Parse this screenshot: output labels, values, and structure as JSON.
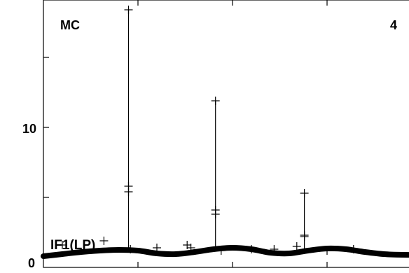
{
  "chart_data": {
    "type": "line",
    "title": "",
    "xlabel": "",
    "ylabel": "",
    "corner_left_label": "MC",
    "corner_right_label": "4",
    "curve_label": "IF1(LP)",
    "ylim": [
      0,
      19.1
    ],
    "xlim": [
      0,
      100
    ],
    "y_ticks": [
      0,
      10
    ],
    "y_tick_labels": [
      "0",
      "10"
    ],
    "series": [
      {
        "name": "IF1(LP)",
        "style": "smooth-thick",
        "x": [
          0,
          5,
          10,
          15,
          20,
          25,
          30,
          35,
          40,
          45,
          50,
          55,
          60,
          65,
          70,
          75,
          80,
          85,
          90,
          95,
          100
        ],
        "values": [
          0.8,
          0.95,
          1.1,
          1.2,
          1.25,
          1.2,
          1.0,
          0.95,
          1.1,
          1.3,
          1.4,
          1.3,
          1.05,
          1.0,
          1.2,
          1.35,
          1.3,
          1.1,
          0.95,
          0.9,
          0.9
        ]
      },
      {
        "name": "",
        "style": "spikes",
        "spikes": [
          {
            "x": 22.5,
            "top": 18.4,
            "marks": [
              5.8,
              5.4
            ]
          },
          {
            "x": 45.5,
            "top": 11.9,
            "marks": [
              4.1,
              3.8
            ]
          },
          {
            "x": 69.0,
            "top": 5.3,
            "marks": [
              2.3,
              2.2
            ]
          }
        ]
      },
      {
        "name": "",
        "style": "plus-markers",
        "x": [
          5,
          16,
          23,
          30,
          38,
          39,
          47,
          55,
          61,
          67,
          75,
          82
        ],
        "values": [
          1.6,
          1.9,
          1.3,
          1.4,
          1.6,
          1.4,
          1.2,
          1.3,
          1.3,
          1.5,
          1.2,
          1.3
        ]
      }
    ]
  }
}
